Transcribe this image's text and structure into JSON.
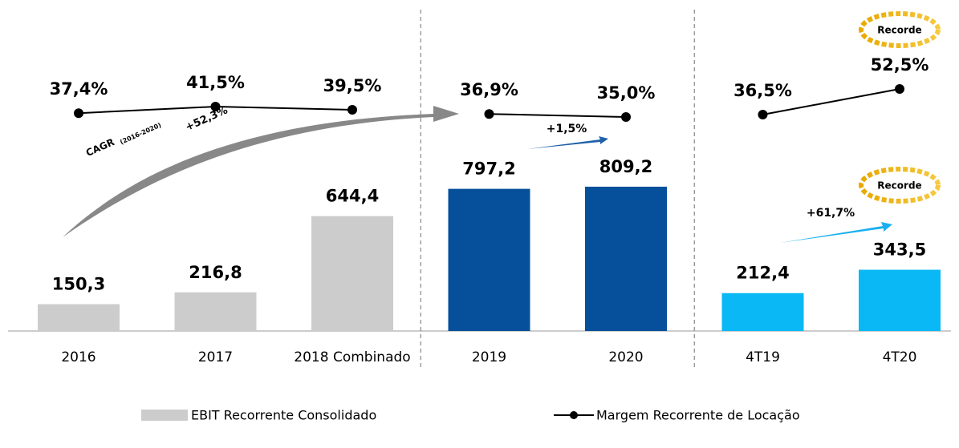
{
  "chart_data": {
    "type": "bar",
    "categories": [
      "2016",
      "2017",
      "2018 Combinado",
      "2019",
      "2020",
      "4T19",
      "4T20"
    ],
    "dividers": [
      3,
      5
    ],
    "ylim": [
      0,
      1000
    ],
    "y2lim": [
      0,
      100
    ],
    "series": [
      {
        "name": "EBIT Recorrente Consolidado",
        "color": "#cccccc",
        "colors": [
          "#cccccc",
          "#cccccc",
          "#cccccc",
          "#06509b",
          "#06509b",
          "#0ab8f5",
          "#0ab8f5"
        ],
        "values": [
          150.3,
          216.8,
          644.4,
          797.2,
          809.2,
          212.4,
          343.5
        ],
        "value_labels": [
          "150,3",
          "216,8",
          "644,4",
          "797,2",
          "809,2",
          "212,4",
          "343,5"
        ]
      },
      {
        "name": "Margem Recorrente de Locação",
        "color": "#000000",
        "axis": "y2",
        "values": [
          37.4,
          41.5,
          39.5,
          36.9,
          35.0,
          36.5,
          52.5
        ],
        "value_labels": [
          "37,4%",
          "41,5%",
          "39,5%",
          "36,9%",
          "35,0%",
          "36,5%",
          "52,5%"
        ]
      }
    ],
    "annotations": {
      "cagr": "CAGR",
      "cagr_period": "(2016-2020)",
      "cagr_value": "+52,3%",
      "growth_year": "+1,5%",
      "growth_quarter": "+61,7%",
      "record_1": "Recorde",
      "record_2": "Recorde"
    }
  }
}
